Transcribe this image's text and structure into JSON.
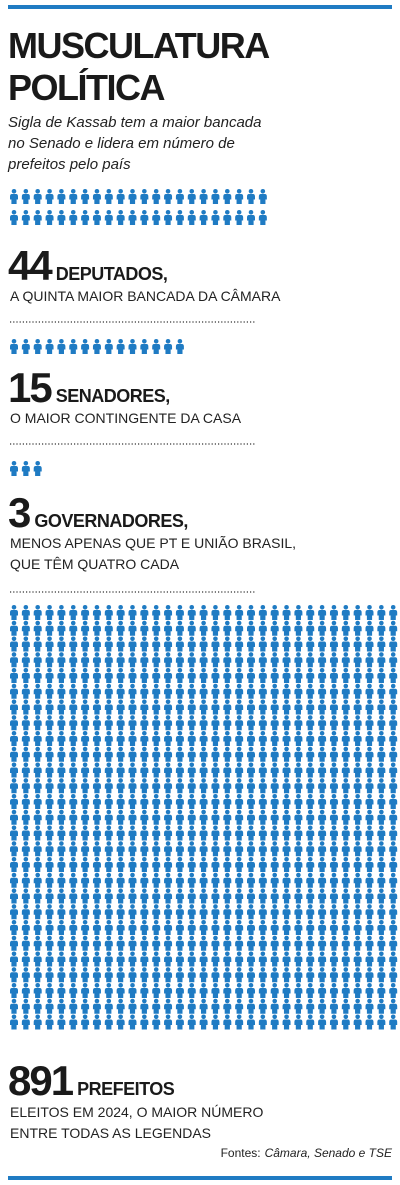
{
  "title_lines": [
    "MUSCULATURA",
    "POLÍTICA"
  ],
  "subtitle_lines": [
    "Sigla de Kassab tem a maior bancada",
    "no Senado e lidera em número de",
    "prefeitos pelo país"
  ],
  "icon_color": "#1f7bc3",
  "sections": [
    {
      "count": 44,
      "label": "DEPUTADOS,",
      "description_lines": [
        "A QUINTA MAIOR BANCADA DA CÂMARA"
      ]
    },
    {
      "count": 15,
      "label": "SENADORES,",
      "description_lines": [
        "O MAIOR CONTINGENTE DA CASA"
      ]
    },
    {
      "count": 3,
      "label": "GOVERNADORES,",
      "description_lines": [
        "MENOS APENAS QUE PT E UNIÃO BRASIL,",
        "QUE TÊM QUATRO CADA"
      ]
    },
    {
      "count": 891,
      "label": "PREFEITOS",
      "description_lines": [
        "ELEITOS EM 2024, O MAIOR NÚMERO",
        "ENTRE TODAS AS LEGENDAS"
      ]
    }
  ],
  "source_prefix": "Fontes:",
  "source_names": "Câmara, Senado e TSE"
}
